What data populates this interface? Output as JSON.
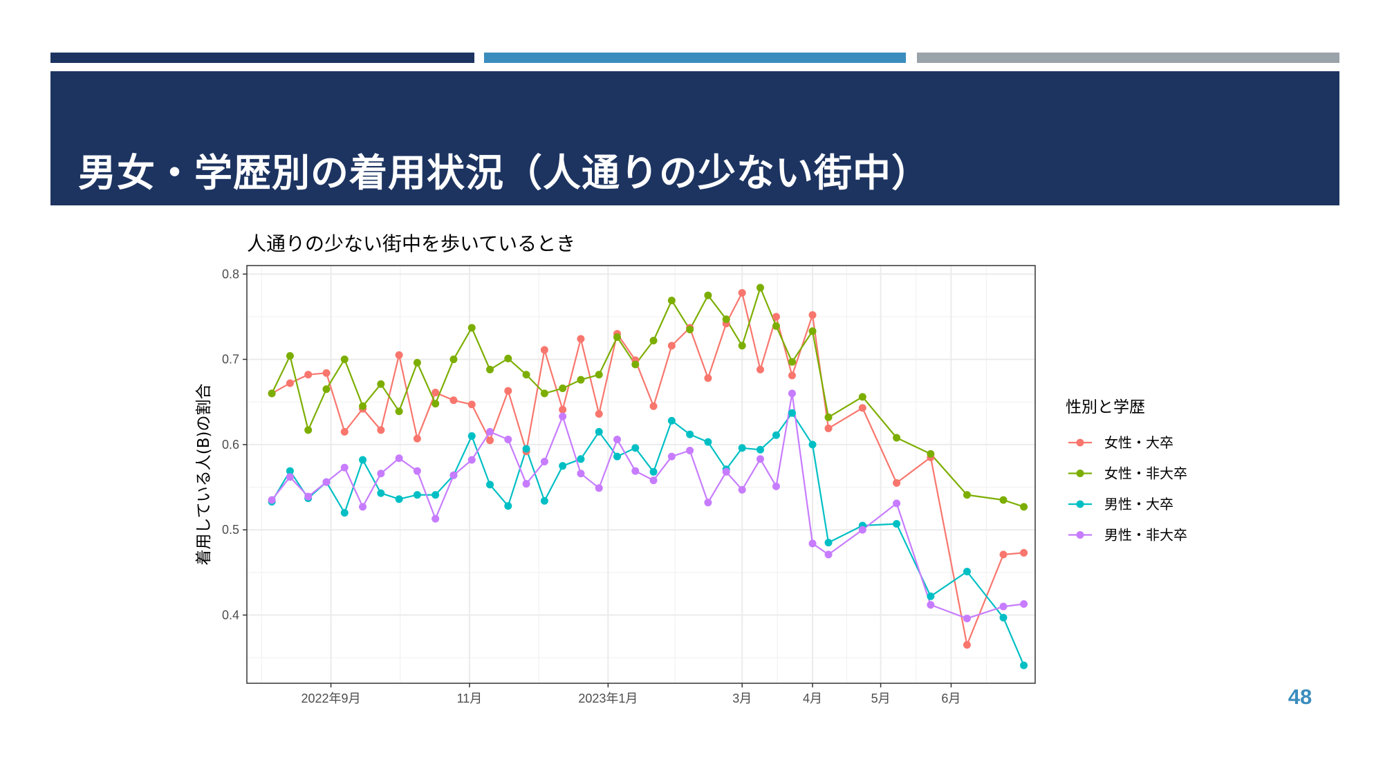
{
  "slide": {
    "title": "男女・学歴別の着用状況（人通りの少ない街中）",
    "page_number": "48",
    "bar_colors": [
      "#1d3461",
      "#3b8dbd",
      "#9aa2aa"
    ]
  },
  "chart_data": {
    "type": "line",
    "title": "人通りの少ない街中を歩いているとき",
    "xlabel": "",
    "ylabel": "着用している人(B)の割合",
    "x_tick_labels": [
      "2022年9月",
      "11月",
      "2023年1月",
      "3月",
      "4月",
      "5月",
      "6月"
    ],
    "x_tick_dates": [
      "2022-09-01",
      "2022-11-01",
      "2023-01-01",
      "2023-03-01",
      "2023-04-01",
      "2023-05-01",
      "2023-06-01"
    ],
    "xlim": [
      "2022-07-26",
      "2023-07-08"
    ],
    "yticks": [
      0.4,
      0.5,
      0.6,
      0.7,
      0.8
    ],
    "ylim": [
      0.32,
      0.81
    ],
    "grid": true,
    "legend_title": "性別と学歴",
    "legend_position": "right",
    "x": [
      "2022-08-06",
      "2022-08-14",
      "2022-08-22",
      "2022-08-30",
      "2022-09-07",
      "2022-09-15",
      "2022-09-23",
      "2022-10-01",
      "2022-10-09",
      "2022-10-17",
      "2022-10-25",
      "2022-11-02",
      "2022-11-10",
      "2022-11-18",
      "2022-11-26",
      "2022-12-04",
      "2022-12-12",
      "2022-12-20",
      "2022-12-28",
      "2023-01-05",
      "2023-01-13",
      "2023-01-21",
      "2023-01-29",
      "2023-02-06",
      "2023-02-14",
      "2023-02-22",
      "2023-03-01",
      "2023-03-09",
      "2023-03-16",
      "2023-03-23",
      "2023-04-01",
      "2023-04-08",
      "2023-04-23",
      "2023-05-08",
      "2023-05-23",
      "2023-06-08",
      "2023-06-24",
      "2023-07-03"
    ],
    "series": [
      {
        "name": "女性・大卒",
        "color": "#f8766d",
        "x": [
          "2022-08-06",
          "2022-08-14",
          "2022-08-22",
          "2022-08-30",
          "2022-09-07",
          "2022-09-15",
          "2022-09-23",
          "2022-10-01",
          "2022-10-09",
          "2022-10-17",
          "2022-10-25",
          "2022-11-02",
          "2022-11-10",
          "2022-11-18",
          "2022-11-26",
          "2022-12-04",
          "2022-12-12",
          "2022-12-20",
          "2022-12-28",
          "2023-01-05",
          "2023-01-13",
          "2023-01-21",
          "2023-01-29",
          "2023-02-06",
          "2023-02-14",
          "2023-02-22",
          "2023-03-01",
          "2023-03-09",
          "2023-03-16",
          "2023-03-23",
          "2023-04-01",
          "2023-04-08",
          "2023-04-23",
          "2023-05-08",
          "2023-05-23",
          "2023-06-08",
          "2023-06-24",
          "2023-07-03"
        ],
        "values": [
          0.66,
          0.672,
          0.682,
          0.684,
          0.615,
          0.642,
          0.617,
          0.705,
          0.607,
          0.661,
          0.652,
          0.647,
          0.605,
          0.663,
          0.592,
          0.711,
          0.641,
          0.724,
          0.636,
          0.73,
          0.699,
          0.645,
          0.716,
          0.737,
          0.678,
          0.742,
          0.778,
          0.688,
          0.75,
          0.681,
          0.752,
          0.619,
          0.643,
          0.555,
          0.585,
          0.365,
          0.471,
          0.473
        ]
      },
      {
        "name": "女性・非大卒",
        "color": "#7cae00",
        "x": [
          "2022-08-06",
          "2022-08-14",
          "2022-08-22",
          "2022-08-30",
          "2022-09-07",
          "2022-09-15",
          "2022-09-23",
          "2022-10-01",
          "2022-10-09",
          "2022-10-17",
          "2022-10-25",
          "2022-11-02",
          "2022-11-10",
          "2022-11-18",
          "2022-11-26",
          "2022-12-04",
          "2022-12-12",
          "2022-12-20",
          "2022-12-28",
          "2023-01-05",
          "2023-01-13",
          "2023-01-21",
          "2023-01-29",
          "2023-02-06",
          "2023-02-14",
          "2023-02-22",
          "2023-03-01",
          "2023-03-09",
          "2023-03-16",
          "2023-03-23",
          "2023-04-01",
          "2023-04-08",
          "2023-04-23",
          "2023-05-08",
          "2023-05-23",
          "2023-06-08",
          "2023-06-24",
          "2023-07-03"
        ],
        "values": [
          0.66,
          0.704,
          0.617,
          0.665,
          0.7,
          0.645,
          0.671,
          0.639,
          0.696,
          0.648,
          0.7,
          0.737,
          0.688,
          0.701,
          0.682,
          0.66,
          0.666,
          0.676,
          0.682,
          0.726,
          0.694,
          0.722,
          0.769,
          0.735,
          0.775,
          0.747,
          0.716,
          0.784,
          0.739,
          0.697,
          0.733,
          0.632,
          0.656,
          0.608,
          0.589,
          0.541,
          0.535,
          0.527
        ]
      },
      {
        "name": "男性・大卒",
        "color": "#00bfc4",
        "x": [
          "2022-08-06",
          "2022-08-14",
          "2022-08-22",
          "2022-08-30",
          "2022-09-07",
          "2022-09-15",
          "2022-09-23",
          "2022-10-01",
          "2022-10-09",
          "2022-10-17",
          "2022-10-25",
          "2022-11-02",
          "2022-11-10",
          "2022-11-18",
          "2022-11-26",
          "2022-12-04",
          "2022-12-12",
          "2022-12-20",
          "2022-12-28",
          "2023-01-05",
          "2023-01-13",
          "2023-01-21",
          "2023-01-29",
          "2023-02-06",
          "2023-02-14",
          "2023-02-22",
          "2023-03-01",
          "2023-03-09",
          "2023-03-16",
          "2023-03-23",
          "2023-04-01",
          "2023-04-08",
          "2023-04-23",
          "2023-05-08",
          "2023-05-23",
          "2023-06-08",
          "2023-06-24",
          "2023-07-03"
        ],
        "values": [
          0.533,
          0.569,
          0.537,
          0.556,
          0.52,
          0.582,
          0.543,
          0.536,
          0.541,
          0.541,
          0.564,
          0.61,
          0.553,
          0.528,
          0.595,
          0.534,
          0.575,
          0.583,
          0.615,
          0.586,
          0.596,
          0.568,
          0.628,
          0.612,
          0.603,
          0.571,
          0.596,
          0.594,
          0.611,
          0.637,
          0.6,
          0.485,
          0.505,
          0.507,
          0.422,
          0.451,
          0.397,
          0.341
        ]
      },
      {
        "name": "男性・非大卒",
        "color": "#c77cff",
        "x": [
          "2022-08-06",
          "2022-08-14",
          "2022-08-22",
          "2022-08-30",
          "2022-09-07",
          "2022-09-15",
          "2022-09-23",
          "2022-10-01",
          "2022-10-09",
          "2022-10-17",
          "2022-10-25",
          "2022-11-02",
          "2022-11-10",
          "2022-11-18",
          "2022-11-26",
          "2022-12-04",
          "2022-12-12",
          "2022-12-20",
          "2022-12-28",
          "2023-01-05",
          "2023-01-13",
          "2023-01-21",
          "2023-01-29",
          "2023-02-06",
          "2023-02-14",
          "2023-02-22",
          "2023-03-01",
          "2023-03-09",
          "2023-03-16",
          "2023-03-23",
          "2023-04-01",
          "2023-04-08",
          "2023-04-23",
          "2023-05-08",
          "2023-05-23",
          "2023-06-08",
          "2023-06-24",
          "2023-07-03"
        ],
        "values": [
          0.535,
          0.562,
          0.539,
          0.556,
          0.573,
          0.527,
          0.566,
          0.584,
          0.569,
          0.513,
          0.564,
          0.582,
          0.615,
          0.606,
          0.554,
          0.58,
          0.633,
          0.566,
          0.549,
          0.606,
          0.569,
          0.558,
          0.586,
          0.593,
          0.532,
          0.568,
          0.547,
          0.583,
          0.551,
          0.66,
          0.484,
          0.471,
          0.5,
          0.531,
          0.412,
          0.396,
          0.41,
          0.413
        ]
      }
    ]
  }
}
